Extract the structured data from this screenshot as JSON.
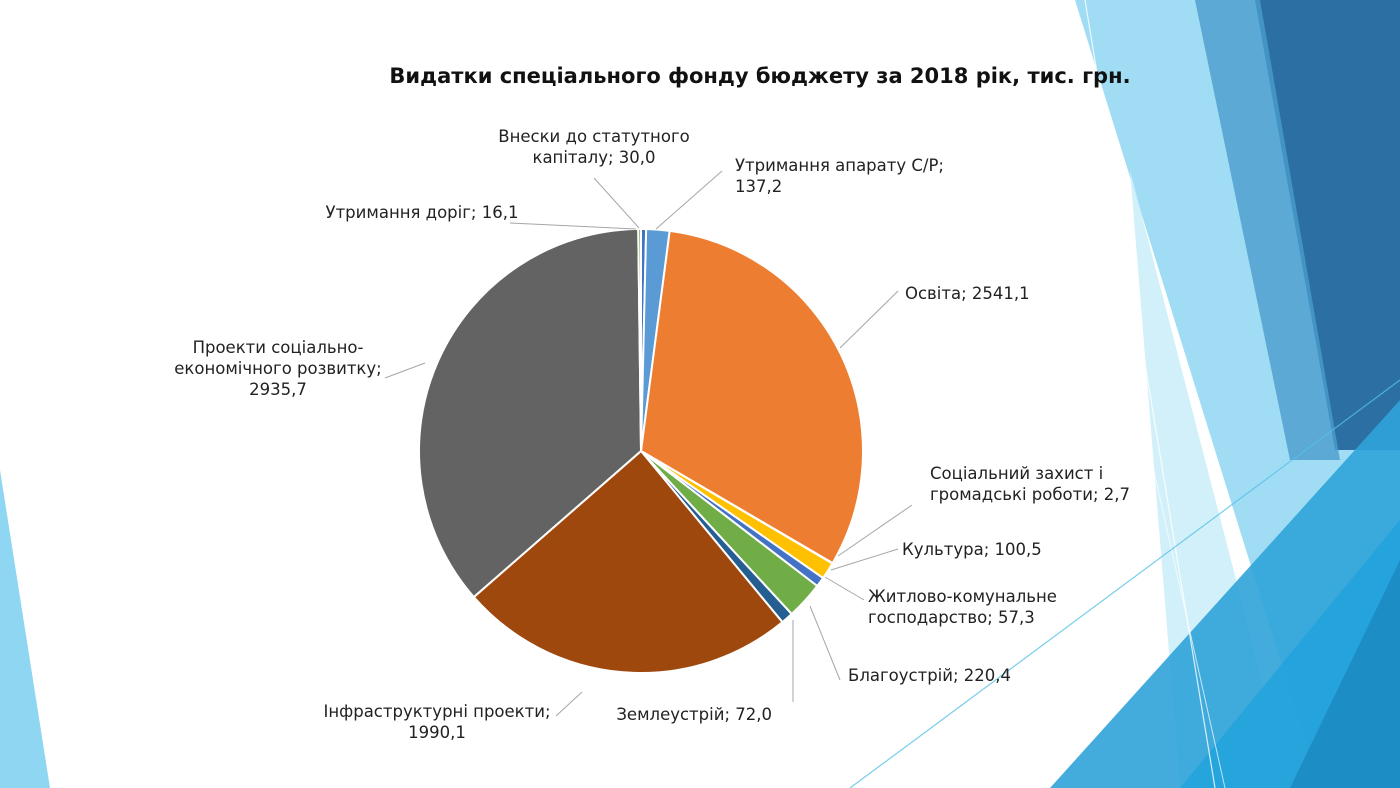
{
  "chart_data": {
    "type": "pie",
    "title": "Видатки спеціального фонду бюджету за 2018 рік, тис. грн.",
    "series": [
      {
        "name": "Внески до статутного капіталу",
        "value": 30.0,
        "value_label": "30,0",
        "color": "#4472c4",
        "label_lines": [
          "Внески до статутного",
          "капіталу; 30,0"
        ]
      },
      {
        "name": "Утримання апарату С/Р",
        "value": 137.2,
        "value_label": "137,2",
        "color": "#5b9bd5",
        "label_lines": [
          "Утримання апарату С/Р;",
          "137,2"
        ]
      },
      {
        "name": "Освіта",
        "value": 2541.1,
        "value_label": "2541,1",
        "color": "#ed7d31",
        "label_lines": [
          "Освіта; 2541,1"
        ]
      },
      {
        "name": "Соціальний захист і громадські роботи",
        "value": 2.7,
        "value_label": "2,7",
        "color": "#a5a5a5",
        "label_lines": [
          "Соціальний захист і",
          "громадські роботи; 2,7"
        ]
      },
      {
        "name": "Культура",
        "value": 100.5,
        "value_label": "100,5",
        "color": "#ffc000",
        "label_lines": [
          "Культура; 100,5"
        ]
      },
      {
        "name": "Житлово-комунальне господарство",
        "value": 57.3,
        "value_label": "57,3",
        "color": "#4472c4",
        "label_lines": [
          "Житлово-комунальне",
          "господарство; 57,3"
        ]
      },
      {
        "name": "Благоустрій",
        "value": 220.4,
        "value_label": "220,4",
        "color": "#70ad47",
        "label_lines": [
          "Благоустрій; 220,4"
        ]
      },
      {
        "name": "Землеустрій",
        "value": 72.0,
        "value_label": "72,0",
        "color": "#255e91",
        "label_lines": [
          "Землеустрій; 72,0"
        ]
      },
      {
        "name": "Інфраструктурні проекти",
        "value": 1990.1,
        "value_label": "1990,1",
        "color": "#9e480e",
        "label_lines": [
          "Інфраструктурні проекти;",
          "1990,1"
        ]
      },
      {
        "name": "Проекти соціально-економічного розвитку",
        "value": 2935.7,
        "value_label": "2935,7",
        "color": "#636363",
        "label_lines": [
          "Проекти соціально-",
          "економічного розвитку;",
          "2935,7"
        ]
      },
      {
        "name": "Утримання доріг",
        "value": 16.1,
        "value_label": "16,1",
        "color": "#70ad47",
        "label_lines": [
          "Утримання доріг; 16,1"
        ]
      }
    ]
  },
  "theme": {
    "decor_colors": [
      "#2b6fa3",
      "#1f5f94",
      "#2fa3d9",
      "#56c1e8",
      "#8fd6f2",
      "#cdeefa"
    ]
  }
}
